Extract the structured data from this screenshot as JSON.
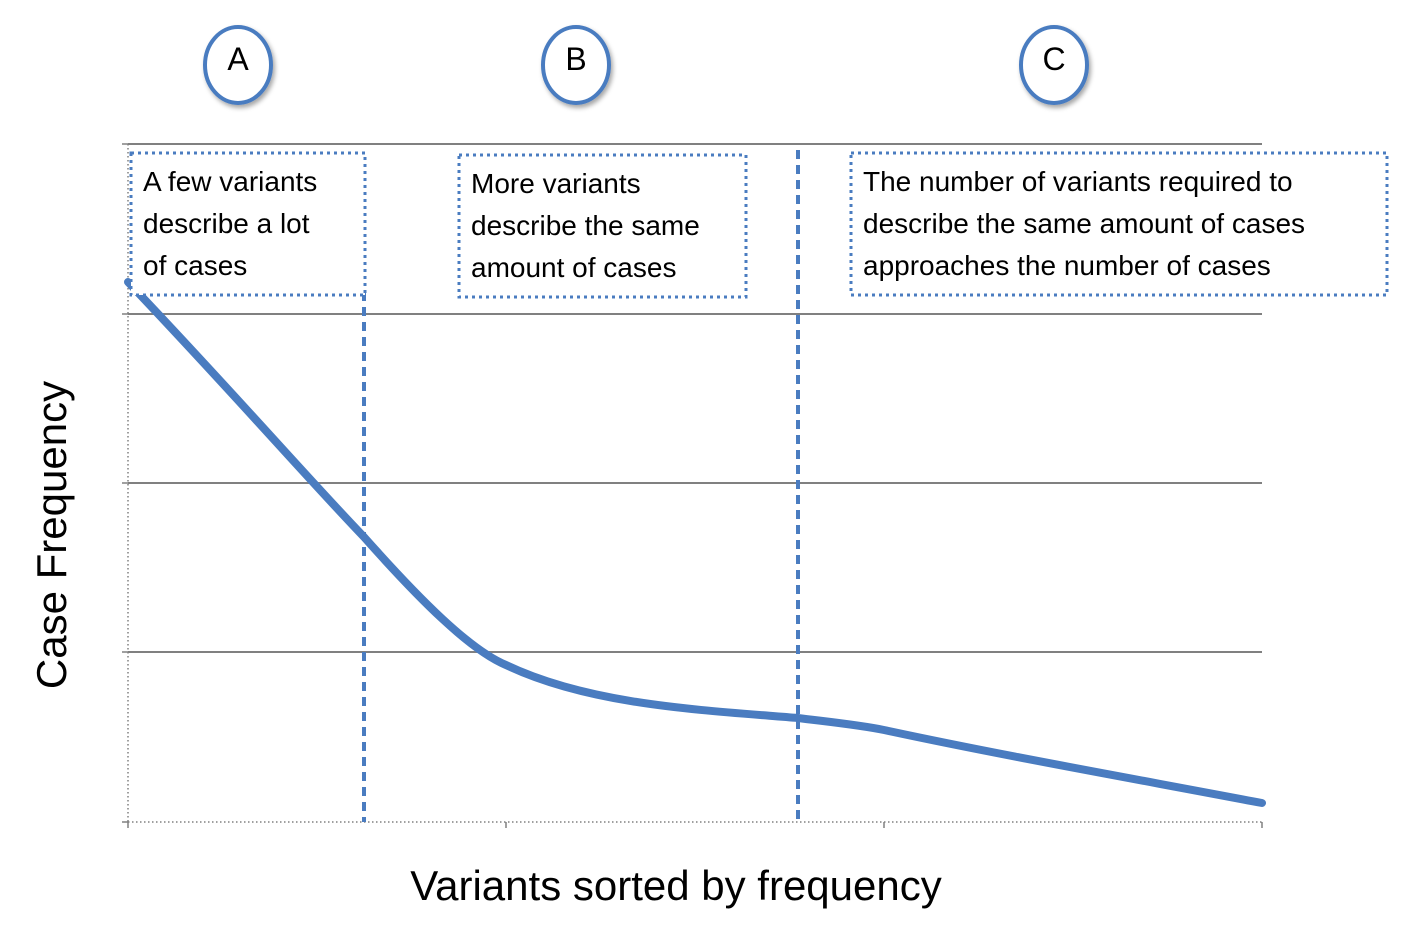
{
  "axes": {
    "ylabel": "Case Frequency",
    "xlabel": "Variants sorted by frequency",
    "grid": true
  },
  "colors": {
    "curve": "#4a7cc0",
    "divider": "#4a7cc0",
    "grid": "#808080",
    "badge_border": "#4a7cc0"
  },
  "zones": [
    {
      "id": "A",
      "label": "A",
      "note_lines": [
        "A few variants",
        "describe a lot",
        "of cases"
      ]
    },
    {
      "id": "B",
      "label": "B",
      "note_lines": [
        "More variants",
        "describe the same",
        "amount of cases"
      ]
    },
    {
      "id": "C",
      "label": "C",
      "note_lines": [
        "The number of variants required to",
        "describe the same amount of cases",
        "approaches the number of cases"
      ]
    }
  ]
}
